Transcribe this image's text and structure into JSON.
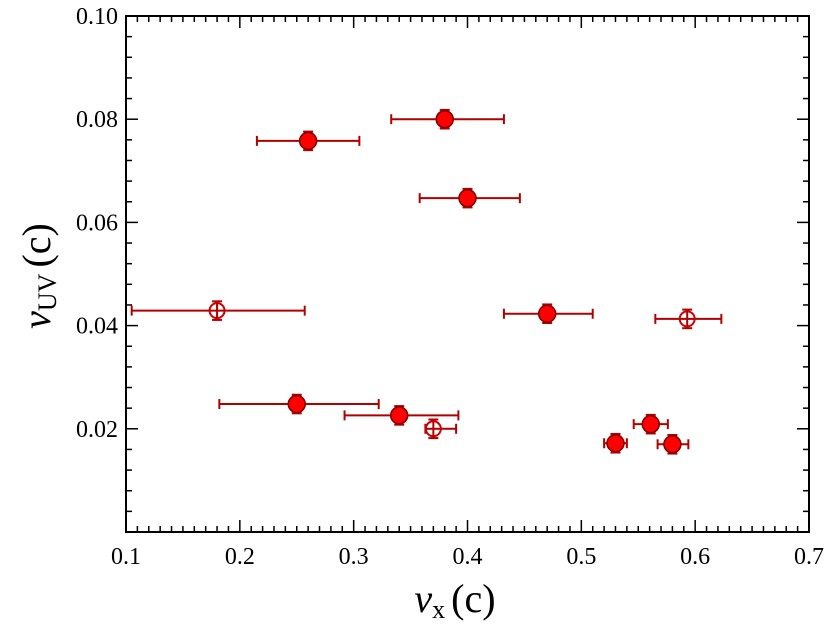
{
  "chart_data": {
    "type": "scatter",
    "title": "",
    "xlabel": {
      "var": "v",
      "sub": "x",
      "unit": "(c)"
    },
    "ylabel": {
      "var": "v",
      "sub": "UV",
      "unit": "(c)"
    },
    "xlim": [
      0.1,
      0.7
    ],
    "ylim": [
      0.0,
      0.1
    ],
    "x_ticks": [
      "0.1",
      "0.2",
      "0.3",
      "0.4",
      "0.5",
      "0.6",
      "0.7"
    ],
    "y_ticks": [
      "0.02",
      "0.04",
      "0.06",
      "0.08",
      "0.10"
    ],
    "grid": false,
    "colors": {
      "marker": "#ff0000",
      "error_bar": "#b00000"
    },
    "series": [
      {
        "name": "filled",
        "marker": "filled-circle",
        "points": [
          {
            "x": 0.26,
            "y": 0.0758,
            "xerr": [
              0.045,
              0.045
            ],
            "yerr": 0.0018
          },
          {
            "x": 0.38,
            "y": 0.08,
            "xerr": [
              0.047,
              0.052
            ],
            "yerr": 0.0018
          },
          {
            "x": 0.4,
            "y": 0.0647,
            "xerr": [
              0.042,
              0.046
            ],
            "yerr": 0.0018
          },
          {
            "x": 0.47,
            "y": 0.0423,
            "xerr": [
              0.038,
              0.04
            ],
            "yerr": 0.0018
          },
          {
            "x": 0.25,
            "y": 0.0248,
            "xerr": [
              0.068,
              0.072
            ],
            "yerr": 0.0018
          },
          {
            "x": 0.34,
            "y": 0.0226,
            "xerr": [
              0.048,
              0.052
            ],
            "yerr": 0.0018
          },
          {
            "x": 0.53,
            "y": 0.0172,
            "xerr": [
              0.01,
              0.01
            ],
            "yerr": 0.0018
          },
          {
            "x": 0.561,
            "y": 0.0209,
            "xerr": [
              0.015,
              0.015
            ],
            "yerr": 0.0018
          },
          {
            "x": 0.58,
            "y": 0.017,
            "xerr": [
              0.013,
              0.014
            ],
            "yerr": 0.0018
          }
        ]
      },
      {
        "name": "open",
        "marker": "open-circle",
        "points": [
          {
            "x": 0.18,
            "y": 0.0429,
            "xerr": [
              0.075,
              0.077
            ],
            "yerr": 0.0018
          },
          {
            "x": 0.37,
            "y": 0.02,
            "xerr": [
              0.007,
              0.02
            ],
            "yerr": 0.0018
          },
          {
            "x": 0.593,
            "y": 0.0413,
            "xerr": [
              0.028,
              0.03
            ],
            "yerr": 0.0018
          }
        ]
      }
    ]
  }
}
